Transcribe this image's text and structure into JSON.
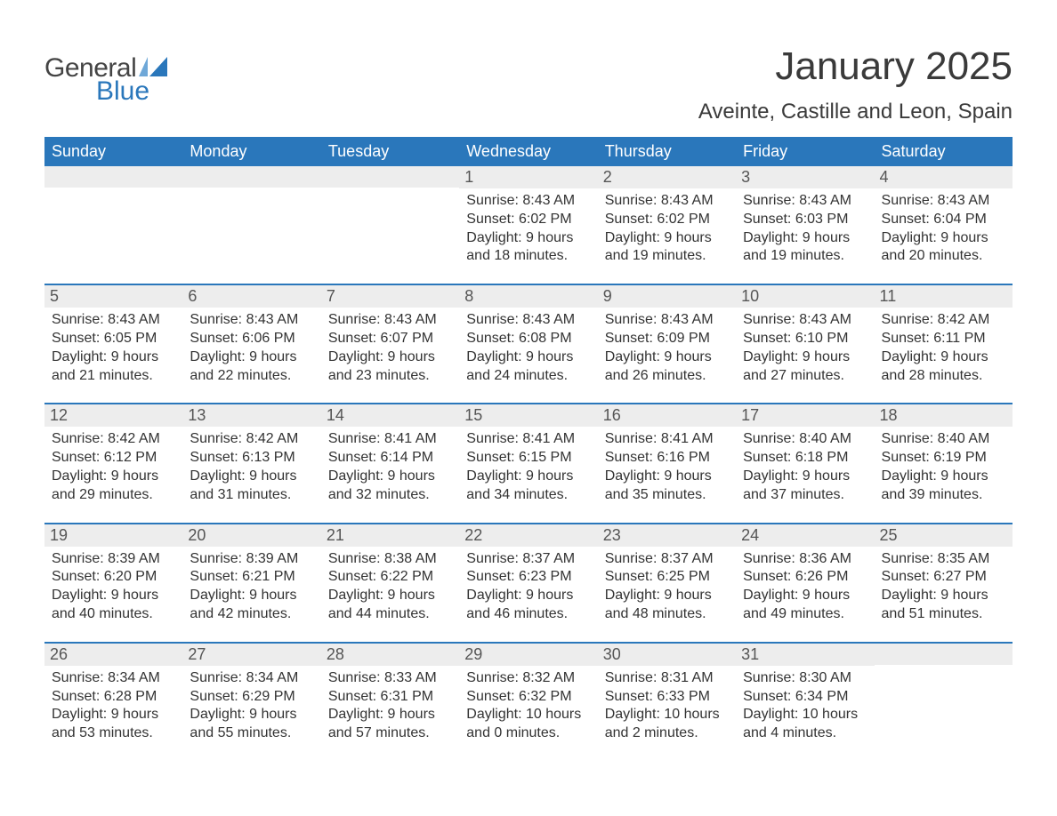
{
  "logo": {
    "general": "General",
    "blue": "Blue",
    "brand_color": "#2a77bb"
  },
  "header": {
    "month_title": "January 2025",
    "location": "Aveinte, Castille and Leon, Spain"
  },
  "calendar": {
    "day_headers": [
      "Sunday",
      "Monday",
      "Tuesday",
      "Wednesday",
      "Thursday",
      "Friday",
      "Saturday"
    ],
    "header_bg": "#2a77bb",
    "header_fg": "#ffffff",
    "daynum_bg": "#ededed",
    "row_border_color": "#2a77bb",
    "text_color": "#333333",
    "font_size_body": 16,
    "weeks": [
      [
        {
          "day": "",
          "sunrise": "",
          "sunset": "",
          "daylight1": "",
          "daylight2": ""
        },
        {
          "day": "",
          "sunrise": "",
          "sunset": "",
          "daylight1": "",
          "daylight2": ""
        },
        {
          "day": "",
          "sunrise": "",
          "sunset": "",
          "daylight1": "",
          "daylight2": ""
        },
        {
          "day": "1",
          "sunrise": "Sunrise: 8:43 AM",
          "sunset": "Sunset: 6:02 PM",
          "daylight1": "Daylight: 9 hours",
          "daylight2": "and 18 minutes."
        },
        {
          "day": "2",
          "sunrise": "Sunrise: 8:43 AM",
          "sunset": "Sunset: 6:02 PM",
          "daylight1": "Daylight: 9 hours",
          "daylight2": "and 19 minutes."
        },
        {
          "day": "3",
          "sunrise": "Sunrise: 8:43 AM",
          "sunset": "Sunset: 6:03 PM",
          "daylight1": "Daylight: 9 hours",
          "daylight2": "and 19 minutes."
        },
        {
          "day": "4",
          "sunrise": "Sunrise: 8:43 AM",
          "sunset": "Sunset: 6:04 PM",
          "daylight1": "Daylight: 9 hours",
          "daylight2": "and 20 minutes."
        }
      ],
      [
        {
          "day": "5",
          "sunrise": "Sunrise: 8:43 AM",
          "sunset": "Sunset: 6:05 PM",
          "daylight1": "Daylight: 9 hours",
          "daylight2": "and 21 minutes."
        },
        {
          "day": "6",
          "sunrise": "Sunrise: 8:43 AM",
          "sunset": "Sunset: 6:06 PM",
          "daylight1": "Daylight: 9 hours",
          "daylight2": "and 22 minutes."
        },
        {
          "day": "7",
          "sunrise": "Sunrise: 8:43 AM",
          "sunset": "Sunset: 6:07 PM",
          "daylight1": "Daylight: 9 hours",
          "daylight2": "and 23 minutes."
        },
        {
          "day": "8",
          "sunrise": "Sunrise: 8:43 AM",
          "sunset": "Sunset: 6:08 PM",
          "daylight1": "Daylight: 9 hours",
          "daylight2": "and 24 minutes."
        },
        {
          "day": "9",
          "sunrise": "Sunrise: 8:43 AM",
          "sunset": "Sunset: 6:09 PM",
          "daylight1": "Daylight: 9 hours",
          "daylight2": "and 26 minutes."
        },
        {
          "day": "10",
          "sunrise": "Sunrise: 8:43 AM",
          "sunset": "Sunset: 6:10 PM",
          "daylight1": "Daylight: 9 hours",
          "daylight2": "and 27 minutes."
        },
        {
          "day": "11",
          "sunrise": "Sunrise: 8:42 AM",
          "sunset": "Sunset: 6:11 PM",
          "daylight1": "Daylight: 9 hours",
          "daylight2": "and 28 minutes."
        }
      ],
      [
        {
          "day": "12",
          "sunrise": "Sunrise: 8:42 AM",
          "sunset": "Sunset: 6:12 PM",
          "daylight1": "Daylight: 9 hours",
          "daylight2": "and 29 minutes."
        },
        {
          "day": "13",
          "sunrise": "Sunrise: 8:42 AM",
          "sunset": "Sunset: 6:13 PM",
          "daylight1": "Daylight: 9 hours",
          "daylight2": "and 31 minutes."
        },
        {
          "day": "14",
          "sunrise": "Sunrise: 8:41 AM",
          "sunset": "Sunset: 6:14 PM",
          "daylight1": "Daylight: 9 hours",
          "daylight2": "and 32 minutes."
        },
        {
          "day": "15",
          "sunrise": "Sunrise: 8:41 AM",
          "sunset": "Sunset: 6:15 PM",
          "daylight1": "Daylight: 9 hours",
          "daylight2": "and 34 minutes."
        },
        {
          "day": "16",
          "sunrise": "Sunrise: 8:41 AM",
          "sunset": "Sunset: 6:16 PM",
          "daylight1": "Daylight: 9 hours",
          "daylight2": "and 35 minutes."
        },
        {
          "day": "17",
          "sunrise": "Sunrise: 8:40 AM",
          "sunset": "Sunset: 6:18 PM",
          "daylight1": "Daylight: 9 hours",
          "daylight2": "and 37 minutes."
        },
        {
          "day": "18",
          "sunrise": "Sunrise: 8:40 AM",
          "sunset": "Sunset: 6:19 PM",
          "daylight1": "Daylight: 9 hours",
          "daylight2": "and 39 minutes."
        }
      ],
      [
        {
          "day": "19",
          "sunrise": "Sunrise: 8:39 AM",
          "sunset": "Sunset: 6:20 PM",
          "daylight1": "Daylight: 9 hours",
          "daylight2": "and 40 minutes."
        },
        {
          "day": "20",
          "sunrise": "Sunrise: 8:39 AM",
          "sunset": "Sunset: 6:21 PM",
          "daylight1": "Daylight: 9 hours",
          "daylight2": "and 42 minutes."
        },
        {
          "day": "21",
          "sunrise": "Sunrise: 8:38 AM",
          "sunset": "Sunset: 6:22 PM",
          "daylight1": "Daylight: 9 hours",
          "daylight2": "and 44 minutes."
        },
        {
          "day": "22",
          "sunrise": "Sunrise: 8:37 AM",
          "sunset": "Sunset: 6:23 PM",
          "daylight1": "Daylight: 9 hours",
          "daylight2": "and 46 minutes."
        },
        {
          "day": "23",
          "sunrise": "Sunrise: 8:37 AM",
          "sunset": "Sunset: 6:25 PM",
          "daylight1": "Daylight: 9 hours",
          "daylight2": "and 48 minutes."
        },
        {
          "day": "24",
          "sunrise": "Sunrise: 8:36 AM",
          "sunset": "Sunset: 6:26 PM",
          "daylight1": "Daylight: 9 hours",
          "daylight2": "and 49 minutes."
        },
        {
          "day": "25",
          "sunrise": "Sunrise: 8:35 AM",
          "sunset": "Sunset: 6:27 PM",
          "daylight1": "Daylight: 9 hours",
          "daylight2": "and 51 minutes."
        }
      ],
      [
        {
          "day": "26",
          "sunrise": "Sunrise: 8:34 AM",
          "sunset": "Sunset: 6:28 PM",
          "daylight1": "Daylight: 9 hours",
          "daylight2": "and 53 minutes."
        },
        {
          "day": "27",
          "sunrise": "Sunrise: 8:34 AM",
          "sunset": "Sunset: 6:29 PM",
          "daylight1": "Daylight: 9 hours",
          "daylight2": "and 55 minutes."
        },
        {
          "day": "28",
          "sunrise": "Sunrise: 8:33 AM",
          "sunset": "Sunset: 6:31 PM",
          "daylight1": "Daylight: 9 hours",
          "daylight2": "and 57 minutes."
        },
        {
          "day": "29",
          "sunrise": "Sunrise: 8:32 AM",
          "sunset": "Sunset: 6:32 PM",
          "daylight1": "Daylight: 10 hours",
          "daylight2": "and 0 minutes."
        },
        {
          "day": "30",
          "sunrise": "Sunrise: 8:31 AM",
          "sunset": "Sunset: 6:33 PM",
          "daylight1": "Daylight: 10 hours",
          "daylight2": "and 2 minutes."
        },
        {
          "day": "31",
          "sunrise": "Sunrise: 8:30 AM",
          "sunset": "Sunset: 6:34 PM",
          "daylight1": "Daylight: 10 hours",
          "daylight2": "and 4 minutes."
        },
        {
          "day": "",
          "sunrise": "",
          "sunset": "",
          "daylight1": "",
          "daylight2": ""
        }
      ]
    ]
  }
}
